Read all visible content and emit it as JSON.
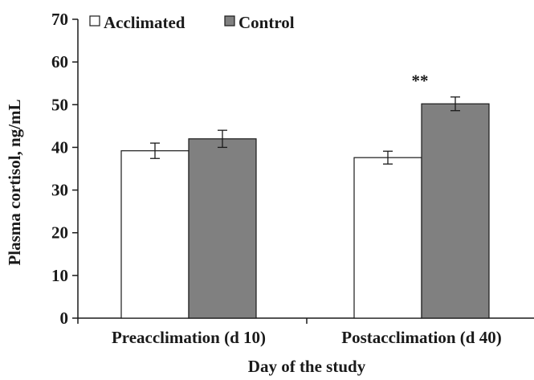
{
  "chart_data": {
    "type": "bar",
    "ylabel": "Plasma cortisol, ng/mL",
    "xlabel": "Day of the study",
    "categories": [
      "Preacclimation (d 10)",
      "Postacclimation (d 40)"
    ],
    "ylim": [
      0,
      70
    ],
    "yticks": [
      "0",
      "10",
      "20",
      "30",
      "40",
      "50",
      "60",
      "70"
    ],
    "grid": false,
    "legend_position": "top-left",
    "series": [
      {
        "name": "Acclimated",
        "color": "#ffffff",
        "values": [
          39.2,
          37.6
        ],
        "errors": [
          1.8,
          1.5
        ]
      },
      {
        "name": "Control",
        "color": "#808080",
        "values": [
          42.0,
          50.2
        ],
        "errors": [
          2.0,
          1.6
        ]
      }
    ],
    "annotations": [
      {
        "text": "**",
        "category_index": 1,
        "series_index": 1
      }
    ]
  }
}
